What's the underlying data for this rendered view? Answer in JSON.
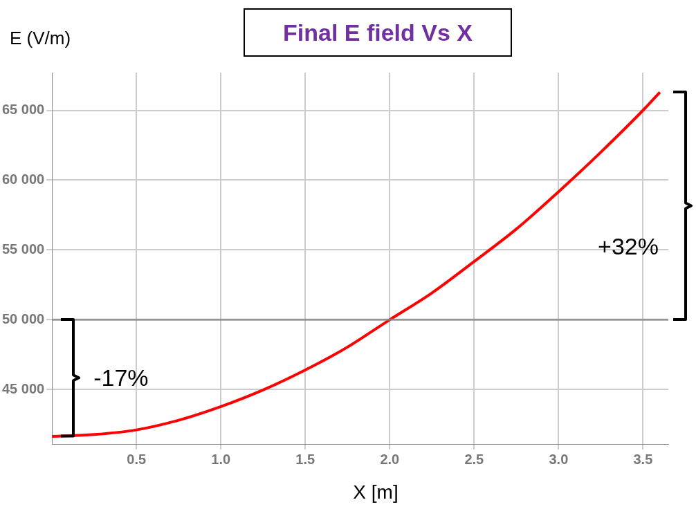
{
  "chart_data": {
    "type": "line",
    "title": "Final E field Vs X",
    "xlabel": "X [m]",
    "ylabel": "E (V/m)",
    "x": [
      0,
      0.25,
      0.5,
      0.75,
      1.0,
      1.25,
      1.5,
      1.75,
      2.0,
      2.25,
      2.5,
      2.75,
      3.0,
      3.25,
      3.5,
      3.6
    ],
    "series": [
      {
        "color": "#ff0000",
        "values": [
          41650,
          41780,
          42110,
          42800,
          43780,
          44970,
          46400,
          48040,
          50000,
          51920,
          54170,
          56500,
          59170,
          62000,
          65000,
          66300
        ]
      }
    ],
    "xlim": [
      0,
      3.65
    ],
    "ylim": [
      41100,
      67700
    ],
    "xticks": [
      0.5,
      {
        "value": 1,
        "label": "1.0"
      },
      1.5,
      {
        "value": 2,
        "label": "2.0"
      },
      2.5,
      {
        "value": 3,
        "label": "3.0"
      },
      3.5
    ],
    "yticks": [
      {
        "value": 45000,
        "label": "45 000"
      },
      {
        "value": 50000,
        "label": "50 000"
      },
      {
        "value": 55000,
        "label": "55 000"
      },
      {
        "value": 60000,
        "label": "60 000"
      },
      {
        "value": 65000,
        "label": "65 000"
      }
    ],
    "ref_lines": [
      {
        "axis": "y",
        "value": 50000,
        "color": "#888888"
      }
    ],
    "annotations": [
      "-17%",
      "+32%"
    ],
    "grid": true,
    "marker": "none",
    "line_style": "solid",
    "legend": false
  }
}
